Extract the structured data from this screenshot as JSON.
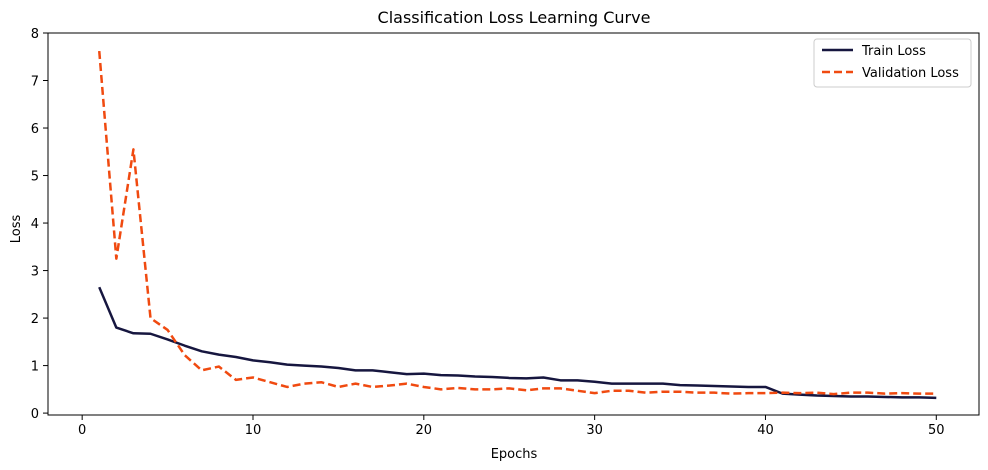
{
  "chart_data": {
    "type": "line",
    "title": "Classification Loss Learning Curve",
    "xlabel": "Epochs",
    "ylabel": "Loss",
    "xlim": [
      -2,
      52.5
    ],
    "ylim": [
      -0.04,
      8
    ],
    "xticks": [
      0,
      10,
      20,
      30,
      40,
      50
    ],
    "yticks": [
      0,
      1,
      2,
      3,
      4,
      5,
      6,
      7,
      8
    ],
    "grid": false,
    "legend_position": "top-right",
    "x": [
      1,
      2,
      3,
      4,
      5,
      6,
      7,
      8,
      9,
      10,
      11,
      12,
      13,
      14,
      15,
      16,
      17,
      18,
      19,
      20,
      21,
      22,
      23,
      24,
      25,
      26,
      27,
      28,
      29,
      30,
      31,
      32,
      33,
      34,
      35,
      36,
      37,
      38,
      39,
      40,
      41,
      42,
      43,
      44,
      45,
      46,
      47,
      48,
      49,
      50
    ],
    "series": [
      {
        "name": "Train Loss",
        "color": "#16163f",
        "style": "solid",
        "values": [
          2.65,
          1.8,
          1.68,
          1.67,
          1.55,
          1.42,
          1.3,
          1.23,
          1.18,
          1.11,
          1.07,
          1.02,
          1.0,
          0.98,
          0.95,
          0.9,
          0.9,
          0.86,
          0.82,
          0.83,
          0.8,
          0.79,
          0.77,
          0.76,
          0.74,
          0.73,
          0.75,
          0.69,
          0.69,
          0.66,
          0.62,
          0.62,
          0.62,
          0.62,
          0.59,
          0.58,
          0.57,
          0.56,
          0.55,
          0.55,
          0.41,
          0.39,
          0.37,
          0.36,
          0.35,
          0.35,
          0.34,
          0.33,
          0.33,
          0.32
        ]
      },
      {
        "name": "Validation Loss",
        "color": "#f04a10",
        "style": "dashed",
        "values": [
          7.62,
          3.25,
          5.55,
          2.0,
          1.75,
          1.22,
          0.9,
          0.98,
          0.7,
          0.75,
          0.65,
          0.55,
          0.62,
          0.65,
          0.55,
          0.62,
          0.55,
          0.58,
          0.62,
          0.55,
          0.5,
          0.53,
          0.5,
          0.5,
          0.52,
          0.48,
          0.52,
          0.52,
          0.47,
          0.42,
          0.47,
          0.47,
          0.43,
          0.45,
          0.45,
          0.43,
          0.43,
          0.41,
          0.42,
          0.42,
          0.43,
          0.42,
          0.43,
          0.4,
          0.43,
          0.43,
          0.41,
          0.42,
          0.41,
          0.41
        ]
      }
    ]
  }
}
